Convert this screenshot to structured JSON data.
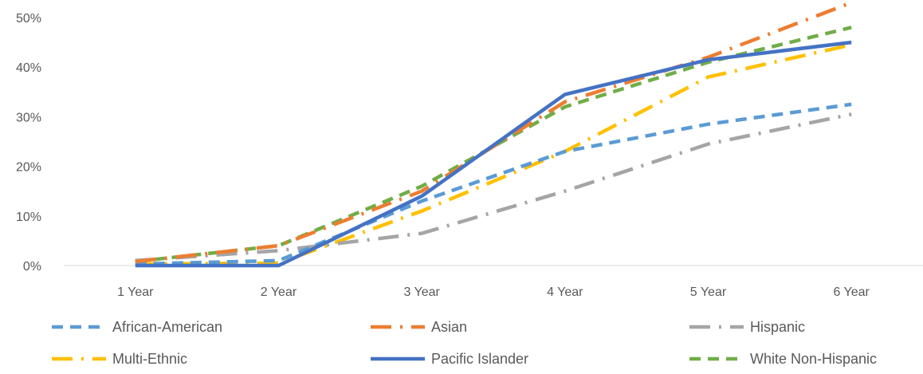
{
  "chart_data": {
    "type": "line",
    "title": "",
    "xlabel": "",
    "ylabel": "",
    "categories": [
      "1 Year",
      "2 Year",
      "3 Year",
      "4 Year",
      "5 Year",
      "6 Year"
    ],
    "ylim": [
      0,
      50
    ],
    "yticks": [
      0,
      10,
      20,
      30,
      40,
      50
    ],
    "ytick_labels": [
      "0%",
      "10%",
      "20%",
      "30%",
      "40%",
      "50%"
    ],
    "grid": false,
    "legend_position": "bottom",
    "series": [
      {
        "name": "African-American",
        "values": [
          0.3,
          1.0,
          13.0,
          23.0,
          28.5,
          32.5
        ],
        "color": "#5B9BD5",
        "dash": "dash"
      },
      {
        "name": "Asian",
        "values": [
          0.8,
          4.0,
          15.0,
          33.0,
          42.0,
          53.0
        ],
        "color": "#ED7D31",
        "dash": "longdashdot"
      },
      {
        "name": "Hispanic",
        "values": [
          1.0,
          3.0,
          6.5,
          15.0,
          24.5,
          30.5
        ],
        "color": "#A5A5A5",
        "dash": "longdashdot"
      },
      {
        "name": "Multi-Ethnic",
        "values": [
          0.3,
          0.5,
          11.0,
          23.0,
          38.0,
          44.5
        ],
        "color": "#FFC000",
        "dash": "longdashdot"
      },
      {
        "name": "Pacific Islander",
        "values": [
          0.0,
          0.0,
          14.0,
          34.5,
          41.5,
          45.0
        ],
        "color": "#4472C4",
        "dash": "solid"
      },
      {
        "name": "White Non-Hispanic",
        "values": [
          0.8,
          4.0,
          16.0,
          32.0,
          41.0,
          48.0
        ],
        "color": "#70AD47",
        "dash": "dash"
      }
    ]
  }
}
